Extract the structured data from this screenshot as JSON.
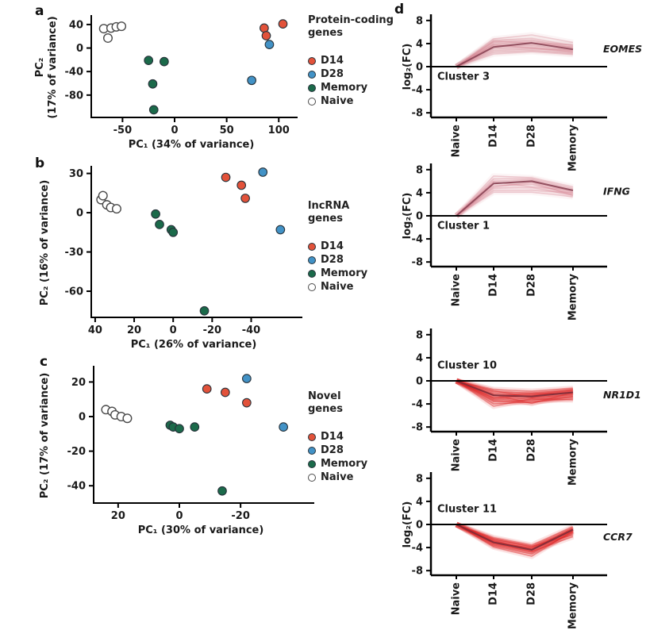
{
  "figure": {
    "panel_labels": {
      "a": "a",
      "b": "b",
      "c": "c",
      "d": "d"
    }
  },
  "colors": {
    "d14": "#e2523a",
    "d28": "#4292c6",
    "memory": "#1b6a4a",
    "naive_fill": "#ffffff",
    "naive_stroke": "#4a4a4a",
    "point_stroke": "#27323a",
    "axis": "#000000",
    "gene_label": "#3c3c99",
    "cluster_text": "#111111",
    "rose_line": "#d4808f",
    "rose_dark": "#8a4454",
    "red_line": "#dd2222",
    "red_dark": "#7c2c38"
  },
  "legends": [
    {
      "id": "protein-coding",
      "title_lines": [
        "Protein-coding",
        "genes"
      ],
      "items": [
        {
          "label": "D14",
          "color_key": "d14",
          "open": false
        },
        {
          "label": "D28",
          "color_key": "d28",
          "open": false
        },
        {
          "label": "Memory",
          "color_key": "memory",
          "open": false
        },
        {
          "label": "Naive",
          "color_key": "naive_fill",
          "open": true
        }
      ]
    },
    {
      "id": "lncrna",
      "title_lines": [
        "lncRNA",
        "genes"
      ],
      "items": [
        {
          "label": "D14",
          "color_key": "d14",
          "open": false
        },
        {
          "label": "D28",
          "color_key": "d28",
          "open": false
        },
        {
          "label": "Memory",
          "color_key": "memory",
          "open": false
        },
        {
          "label": "Naive",
          "color_key": "naive_fill",
          "open": true
        }
      ]
    },
    {
      "id": "novel",
      "title_lines": [
        "Novel",
        "genes"
      ],
      "items": [
        {
          "label": "D14",
          "color_key": "d14",
          "open": false
        },
        {
          "label": "D28",
          "color_key": "d28",
          "open": false
        },
        {
          "label": "Memory",
          "color_key": "memory",
          "open": false
        },
        {
          "label": "Naive",
          "color_key": "naive_fill",
          "open": true
        }
      ]
    }
  ],
  "chart_data": [
    {
      "id": "pca_a",
      "type": "scatter",
      "panel": "a",
      "xlabel": "PC₁ (34% of variance)",
      "ylabel_lines": [
        "PC₂",
        "(17% of variance)"
      ],
      "xlim": [
        -80,
        112
      ],
      "ylim": [
        52,
        -118
      ],
      "xticks": [
        -50,
        0,
        50,
        100
      ],
      "yticks": [
        40,
        0,
        -40,
        -80
      ],
      "series": [
        {
          "name": "Naive",
          "color_key": "naive_fill",
          "open": true,
          "points": [
            [
              -68,
              33
            ],
            [
              -61,
              34
            ],
            [
              -56,
              36
            ],
            [
              -51,
              37
            ],
            [
              -64,
              17
            ]
          ]
        },
        {
          "name": "Memory",
          "color_key": "memory",
          "open": false,
          "points": [
            [
              -25,
              -21
            ],
            [
              -10,
              -23
            ],
            [
              -21,
              -61
            ],
            [
              -20,
              -105
            ]
          ]
        },
        {
          "name": "D28",
          "color_key": "d28",
          "open": false,
          "points": [
            [
              91,
              6
            ],
            [
              74,
              -55
            ]
          ]
        },
        {
          "name": "D14",
          "color_key": "d14",
          "open": false,
          "points": [
            [
              86,
              34
            ],
            [
              104,
              41
            ],
            [
              88,
              21
            ]
          ]
        }
      ]
    },
    {
      "id": "pca_b",
      "type": "scatter",
      "panel": "b",
      "xlabel": "PC₁ (26% of variance)",
      "ylabel_lines": [
        "PC₂ (16% of variance)"
      ],
      "xlim": [
        42,
        -63
      ],
      "ylim": [
        34,
        -80
      ],
      "xticks": [
        40,
        20,
        0,
        -20,
        -40
      ],
      "yticks": [
        30,
        0,
        -30,
        -60
      ],
      "series": [
        {
          "name": "Naive",
          "color_key": "naive_fill",
          "open": true,
          "points": [
            [
              37,
              10
            ],
            [
              36,
              13
            ],
            [
              34,
              6
            ],
            [
              32,
              4
            ],
            [
              29,
              3
            ]
          ]
        },
        {
          "name": "Memory",
          "color_key": "memory",
          "open": false,
          "points": [
            [
              9,
              -1
            ],
            [
              7,
              -9
            ],
            [
              1,
              -13
            ],
            [
              0,
              -15
            ],
            [
              -16,
              -75
            ]
          ]
        },
        {
          "name": "D28",
          "color_key": "d28",
          "open": false,
          "points": [
            [
              -46,
              31
            ],
            [
              -55,
              -13
            ]
          ]
        },
        {
          "name": "D14",
          "color_key": "d14",
          "open": false,
          "points": [
            [
              -27,
              27
            ],
            [
              -35,
              21
            ],
            [
              -37,
              11
            ]
          ]
        }
      ]
    },
    {
      "id": "pca_c",
      "type": "scatter",
      "panel": "c",
      "xlabel": "PC₁ (30% of variance)",
      "ylabel_lines": [
        "PC₂ (17% of variance)"
      ],
      "xlim": [
        28,
        -42
      ],
      "ylim": [
        28,
        -50
      ],
      "xticks": [
        20,
        0,
        -20
      ],
      "yticks": [
        20,
        0,
        -20,
        -40
      ],
      "series": [
        {
          "name": "Naive",
          "color_key": "naive_fill",
          "open": true,
          "points": [
            [
              24,
              4
            ],
            [
              22,
              3
            ],
            [
              21,
              1
            ],
            [
              19,
              0
            ],
            [
              17,
              -1
            ]
          ]
        },
        {
          "name": "Memory",
          "color_key": "memory",
          "open": false,
          "points": [
            [
              3,
              -5
            ],
            [
              2,
              -6
            ],
            [
              0,
              -7
            ],
            [
              -5,
              -6
            ],
            [
              -14,
              -43
            ]
          ]
        },
        {
          "name": "D28",
          "color_key": "d28",
          "open": false,
          "points": [
            [
              -22,
              22
            ],
            [
              -34,
              -6
            ]
          ]
        },
        {
          "name": "D14",
          "color_key": "d14",
          "open": false,
          "points": [
            [
              -9,
              16
            ],
            [
              -15,
              14
            ],
            [
              -22,
              8
            ]
          ]
        }
      ]
    },
    {
      "id": "cluster_3",
      "type": "line",
      "panel": "d",
      "cluster_label": "Cluster 3",
      "gene_label": "EOMES",
      "ylabel": "log₂(FC)",
      "categories": [
        "Naive",
        "D14",
        "D28",
        "Memory"
      ],
      "ylim": [
        8.8,
        -8.8
      ],
      "yticks": [
        8,
        4,
        0,
        -4,
        -8
      ],
      "line_color_key": "rose_line",
      "highlight_color_key": "rose_dark",
      "band_alpha": 0.09,
      "line_alpha": 0.35,
      "cluster_label_y": -2.3,
      "gene_label_y": 3.0,
      "lines": [
        [
          0,
          4.8,
          5.5,
          4.2
        ],
        [
          0,
          4.5,
          4.9,
          3.6
        ],
        [
          0,
          4.2,
          4.6,
          3.3
        ],
        [
          0,
          3.9,
          4.3,
          3.1
        ],
        [
          0,
          3.6,
          4.0,
          3.4
        ],
        [
          0,
          3.4,
          3.7,
          2.8
        ],
        [
          0,
          3.1,
          3.4,
          2.6
        ],
        [
          0,
          2.8,
          3.1,
          2.9
        ],
        [
          0,
          2.5,
          2.8,
          2.3
        ],
        [
          0,
          2.2,
          2.6,
          2.1
        ],
        [
          0,
          3.8,
          3.2,
          2.5
        ],
        [
          0,
          4.4,
          4.1,
          3.8
        ]
      ],
      "highlight": [
        0,
        3.4,
        4.1,
        3.0
      ]
    },
    {
      "id": "cluster_1",
      "type": "line",
      "panel": "d",
      "cluster_label": "Cluster 1",
      "gene_label": "IFNG",
      "ylabel": "log₂(FC)",
      "categories": [
        "Naive",
        "D14",
        "D28",
        "Memory"
      ],
      "ylim": [
        8.8,
        -8.8
      ],
      "yticks": [
        8,
        4,
        0,
        -4,
        -8
      ],
      "line_color_key": "rose_line",
      "highlight_color_key": "rose_dark",
      "band_alpha": 0.08,
      "line_alpha": 0.32,
      "cluster_label_y": -2.3,
      "gene_label_y": 4.2,
      "lines": [
        [
          0,
          6.9,
          6.6,
          5.0
        ],
        [
          0,
          6.4,
          6.4,
          4.7
        ],
        [
          0,
          6.0,
          6.2,
          4.4
        ],
        [
          0,
          5.6,
          5.9,
          4.1
        ],
        [
          0,
          5.2,
          5.5,
          3.8
        ],
        [
          0,
          4.8,
          4.9,
          3.6
        ],
        [
          0,
          4.4,
          4.4,
          4.0
        ],
        [
          0,
          4.1,
          4.1,
          3.3
        ],
        [
          0,
          5.9,
          5.0,
          4.5
        ],
        [
          0,
          5.0,
          5.8,
          3.5
        ]
      ],
      "highlight": [
        0,
        5.6,
        6.0,
        4.4
      ]
    },
    {
      "id": "cluster_10",
      "type": "line",
      "panel": "d",
      "cluster_label": "Cluster 10",
      "gene_label": "NR1D1",
      "ylabel": null,
      "categories": [
        "Naive",
        "D14",
        "D28",
        "Memory"
      ],
      "ylim": [
        8.8,
        -8.8
      ],
      "yticks": [
        8,
        4,
        0,
        -4,
        -8
      ],
      "line_color_key": "red_line",
      "highlight_color_key": "red_dark",
      "band_alpha": 0.12,
      "line_alpha": 0.4,
      "cluster_label_y": 2.1,
      "gene_label_y": -2.5,
      "lines": [
        [
          0,
          -1.5,
          -1.8,
          -1.3
        ],
        [
          0,
          -1.9,
          -2.1,
          -1.6
        ],
        [
          0,
          -2.2,
          -2.4,
          -1.9
        ],
        [
          0,
          -2.6,
          -2.2,
          -2.2
        ],
        [
          0,
          -2.9,
          -2.7,
          -1.7
        ],
        [
          0,
          -3.2,
          -3.0,
          -2.5
        ],
        [
          0,
          -3.6,
          -3.3,
          -2.8
        ],
        [
          0,
          -4.0,
          -3.6,
          -3.1
        ],
        [
          0,
          -4.4,
          -3.1,
          -3.3
        ],
        [
          0,
          -2.4,
          -3.9,
          -2.0
        ],
        [
          0,
          -1.7,
          -2.9,
          -2.3
        ],
        [
          0,
          -3.0,
          -2.5,
          -1.5
        ],
        [
          0,
          -3.4,
          -3.8,
          -2.7
        ]
      ],
      "highlight": [
        0,
        -2.5,
        -2.7,
        -2.0
      ]
    },
    {
      "id": "cluster_11",
      "type": "line",
      "panel": "d",
      "cluster_label": "Cluster 11",
      "gene_label": "CCR7",
      "ylabel": "log₂(FC)",
      "categories": [
        "Naive",
        "D14",
        "D28",
        "Memory"
      ],
      "ylim": [
        8.8,
        -8.8
      ],
      "yticks": [
        8,
        4,
        0,
        -4,
        -8
      ],
      "line_color_key": "red_line",
      "highlight_color_key": "red_dark",
      "band_alpha": 0.12,
      "line_alpha": 0.42,
      "cluster_label_y": 2.1,
      "gene_label_y": -2.2,
      "lines": [
        [
          0,
          -2.3,
          -3.6,
          -0.4
        ],
        [
          0,
          -2.6,
          -3.9,
          -0.7
        ],
        [
          0,
          -2.9,
          -4.2,
          -0.9
        ],
        [
          0,
          -3.2,
          -4.5,
          -1.2
        ],
        [
          0,
          -3.5,
          -4.8,
          -1.5
        ],
        [
          0,
          -2.8,
          -4.4,
          -0.6
        ],
        [
          0,
          -3.1,
          -4.1,
          -1.0
        ],
        [
          0,
          -3.7,
          -5.1,
          -1.3
        ],
        [
          0,
          -2.5,
          -3.8,
          -1.8
        ],
        [
          0,
          -3.9,
          -5.5,
          -1.1
        ],
        [
          0,
          -3.3,
          -4.7,
          -2.1
        ]
      ],
      "highlight": [
        0,
        -3.1,
        -4.4,
        -0.9
      ]
    }
  ]
}
